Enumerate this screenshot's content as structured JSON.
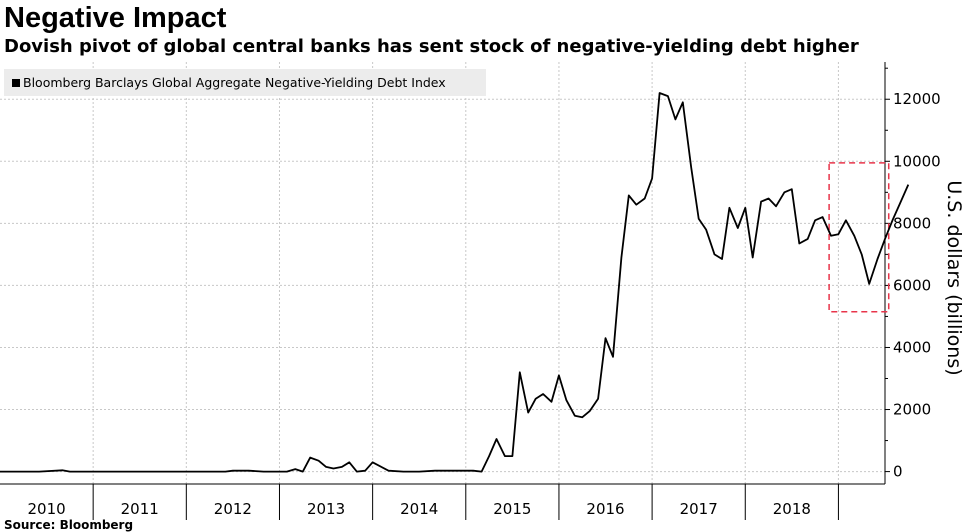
{
  "header": {
    "title": "Negative Impact",
    "subtitle": "Dovish pivot of global central banks has sent stock of negative-yielding debt higher"
  },
  "footer": {
    "source": "Source: Bloomberg"
  },
  "chart_data": {
    "type": "line",
    "legend": "top-left",
    "grid": true,
    "ylabel": "U.S. dollars (billions)",
    "ylim": [
      -400,
      13200
    ],
    "xlim": [
      2009.5,
      2019.0
    ],
    "y_ticks": [
      {
        "value": 0,
        "label": "0"
      },
      {
        "value": 2000,
        "label": "2000"
      },
      {
        "value": 4000,
        "label": "4000"
      },
      {
        "value": 6000,
        "label": "6000"
      },
      {
        "value": 8000,
        "label": "8000"
      },
      {
        "value": 10000,
        "label": "10000"
      },
      {
        "value": 12000,
        "label": "12000"
      }
    ],
    "x_ticks": [
      {
        "value": 2010,
        "label": "2010"
      },
      {
        "value": 2011,
        "label": "2011"
      },
      {
        "value": 2012,
        "label": "2012"
      },
      {
        "value": 2013,
        "label": "2013"
      },
      {
        "value": 2014,
        "label": "2014"
      },
      {
        "value": 2015,
        "label": "2015"
      },
      {
        "value": 2016,
        "label": "2016"
      },
      {
        "value": 2017,
        "label": "2017"
      },
      {
        "value": 2018,
        "label": "2018"
      }
    ],
    "highlight_box": {
      "x_start": 2018.4,
      "x_end": 2019.04,
      "y_start": 5150,
      "y_end": 9950,
      "color": "#e8344a"
    },
    "colors": {
      "line": "#000000",
      "grid": "#c8c8c8",
      "axis": "#000000"
    },
    "series": [
      {
        "name": "Bloomberg Barclays Global Aggregate Negative-Yielding Debt Index",
        "x": [
          2009.5,
          2009.75,
          2009.92,
          2010.17,
          2010.25,
          2010.42,
          2010.67,
          2010.92,
          2011.17,
          2011.42,
          2011.67,
          2011.92,
          2012.0,
          2012.17,
          2012.33,
          2012.5,
          2012.58,
          2012.67,
          2012.75,
          2012.83,
          2012.92,
          2013.0,
          2013.08,
          2013.17,
          2013.25,
          2013.33,
          2013.42,
          2013.5,
          2013.67,
          2013.83,
          2014.0,
          2014.17,
          2014.33,
          2014.42,
          2014.5,
          2014.58,
          2014.67,
          2014.75,
          2014.83,
          2014.92,
          2015.0,
          2015.08,
          2015.17,
          2015.25,
          2015.33,
          2015.42,
          2015.5,
          2015.58,
          2015.67,
          2015.75,
          2015.83,
          2015.92,
          2016.0,
          2016.08,
          2016.17,
          2016.25,
          2016.33,
          2016.42,
          2016.5,
          2016.58,
          2016.67,
          2016.75,
          2016.83,
          2016.92,
          2017.0,
          2017.08,
          2017.17,
          2017.25,
          2017.33,
          2017.42,
          2017.5,
          2017.58,
          2017.67,
          2017.75,
          2017.83,
          2017.92,
          2018.0,
          2018.08,
          2018.17,
          2018.25,
          2018.33,
          2018.42,
          2018.5,
          2018.58,
          2018.67,
          2018.75,
          2018.83,
          2018.92,
          2019.0,
          2019.08,
          2019.17,
          2019.25
        ],
        "values": [
          0,
          0,
          0,
          40,
          0,
          0,
          0,
          0,
          0,
          0,
          0,
          0,
          30,
          30,
          0,
          0,
          0,
          80,
          0,
          450,
          350,
          150,
          100,
          150,
          300,
          0,
          30,
          300,
          30,
          0,
          0,
          30,
          30,
          30,
          30,
          30,
          0,
          500,
          1050,
          500,
          500,
          3200,
          1900,
          2350,
          2500,
          2250,
          3100,
          2300,
          1800,
          1750,
          1950,
          2350,
          4300,
          3700,
          6900,
          8900,
          8600,
          8800,
          9450,
          12200,
          12100,
          11350,
          11900,
          9800,
          8150,
          7800,
          7000,
          6850,
          8500,
          7850,
          8500,
          6900,
          8700,
          8800,
          8550,
          9000,
          9100,
          7350,
          7500,
          8100,
          8200,
          7600,
          7650,
          8100,
          7600,
          7000,
          6050,
          6850,
          7500,
          8100,
          8700,
          9250
        ]
      }
    ]
  }
}
